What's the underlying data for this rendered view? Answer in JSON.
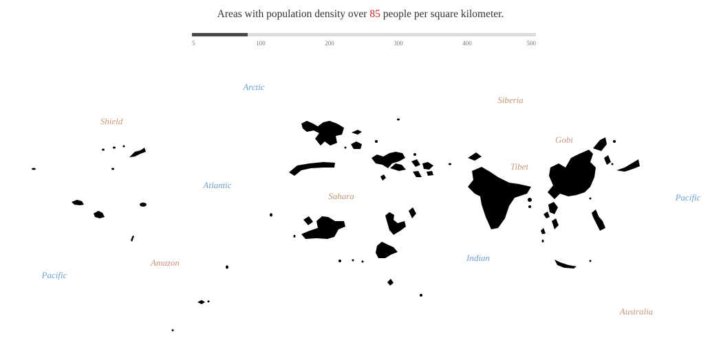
{
  "header": {
    "prefix": "Areas with population density over",
    "threshold": "85",
    "suffix": "people per square kilometer."
  },
  "slider": {
    "min": 5,
    "max": 500,
    "value": 85,
    "ticks": [
      "5",
      "100",
      "200",
      "300",
      "400",
      "500"
    ]
  },
  "colors": {
    "ocean_label": "#6b9fcf",
    "land_label": "#c8967a",
    "accent": "#cc2222",
    "fill": "#000000"
  },
  "labels": {
    "ocean": [
      "Arctic",
      "Atlantic",
      "Pacific",
      "Indian",
      "Pacific"
    ],
    "land": [
      "Shield",
      "Siberia",
      "Gobi",
      "Tibet",
      "Sahara",
      "Amazon",
      "Australia"
    ]
  }
}
